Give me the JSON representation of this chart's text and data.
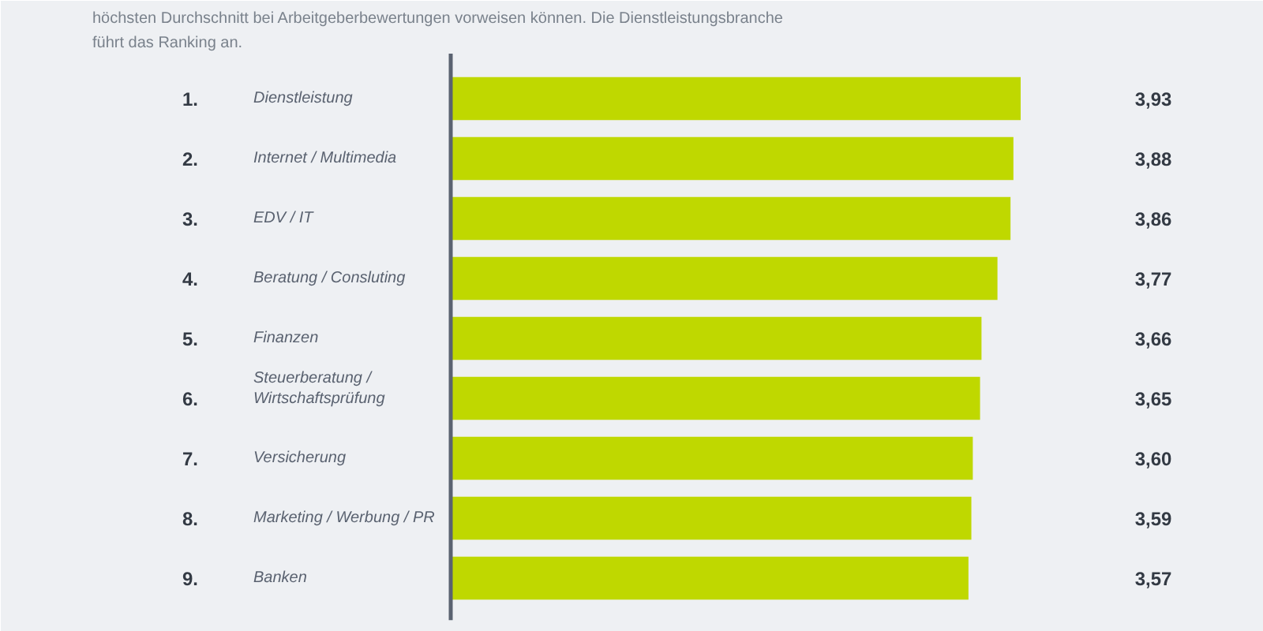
{
  "chart_data": {
    "type": "bar",
    "orientation": "horizontal",
    "subtitle": "höchsten Durchschnitt bei Arbeitgeberbewertungen vorweisen können. Die Dienstleistungsbranche\nführt das Ranking an.",
    "categories": [
      "1. Dienstleistung",
      "2. Internet / Multimedia",
      "3. EDV / IT",
      "4. Beratung / Consluting",
      "5. Finanzen",
      "6. Steuerberatung /\nWirtschaftsprüfung",
      "7. Versicherung",
      "8. Marketing / Werbung / PR",
      "9. Banken"
    ],
    "values": [
      3.93,
      3.88,
      3.86,
      3.77,
      3.66,
      3.65,
      3.6,
      3.59,
      3.57
    ],
    "value_labels": [
      "3,93",
      "3,88",
      "3,86",
      "3,77",
      "3,66",
      "3,65",
      "3,60",
      "3,59",
      "3,57"
    ],
    "color": "#bfd800"
  }
}
